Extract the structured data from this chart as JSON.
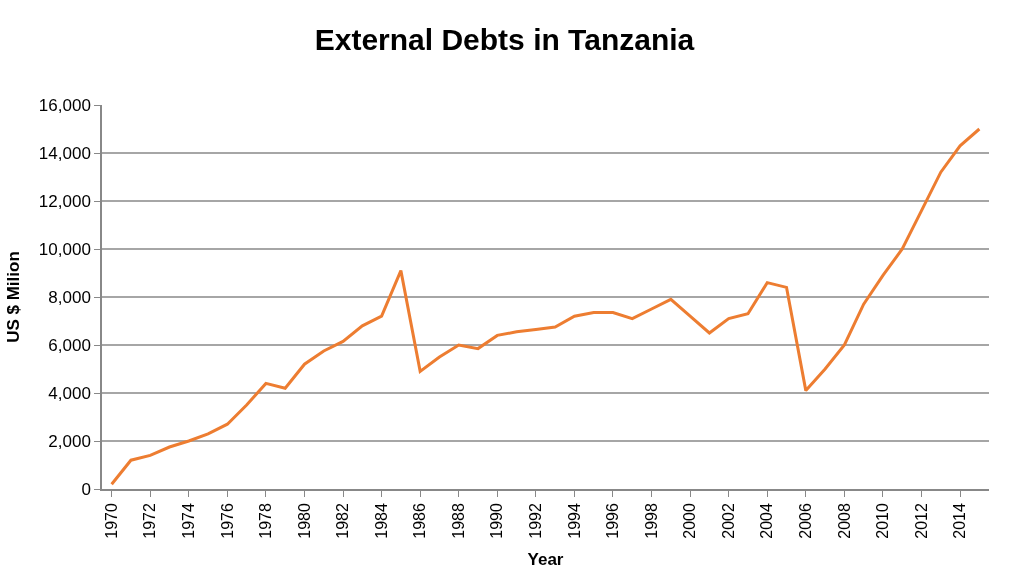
{
  "chart_data": {
    "type": "line",
    "title": "External Debts in Tanzania",
    "xlabel": "Year",
    "ylabel": "US $ Milion",
    "categories": [
      "1970",
      null,
      "1972",
      null,
      "1974",
      null,
      "1976",
      null,
      "1978",
      null,
      "1980",
      null,
      "1982",
      null,
      "1984",
      null,
      "1986",
      null,
      "1988",
      null,
      "1990",
      null,
      "1992",
      null,
      "1994",
      null,
      "1996",
      null,
      "1998",
      null,
      "2000",
      null,
      "2002",
      null,
      "2004",
      null,
      "2006",
      null,
      "2008",
      null,
      "2010",
      null,
      "2012",
      null,
      "2014",
      null
    ],
    "series": [
      {
        "color": "#ed7d31",
        "values": [
          200,
          1200,
          1400,
          1750,
          2000,
          2300,
          2700,
          3500,
          4400,
          4200,
          5200,
          5750,
          6150,
          6800,
          7200,
          9100,
          4900,
          5500,
          6000,
          5850,
          6400,
          6550,
          6650,
          6750,
          7200,
          7350,
          7350,
          7100,
          7500,
          7900,
          7200,
          6500,
          7100,
          7300,
          8600,
          8400,
          4100,
          5000,
          6000,
          7700,
          8900,
          10000,
          11600,
          13200,
          14300,
          15000
        ]
      }
    ],
    "ylim": [
      0,
      16000
    ],
    "yticks": [
      {
        "value": 0,
        "label": "0"
      },
      {
        "value": 2000,
        "label": "2,000"
      },
      {
        "value": 4000,
        "label": "4,000"
      },
      {
        "value": 6000,
        "label": "6,000"
      },
      {
        "value": 8000,
        "label": "8,000"
      },
      {
        "value": 10000,
        "label": "10,000"
      },
      {
        "value": 12000,
        "label": "12,000"
      },
      {
        "value": 14000,
        "label": "14,000"
      },
      {
        "value": 16000,
        "label": "16,000"
      }
    ],
    "grid": "y",
    "marker": "none",
    "line_style": "solid"
  }
}
